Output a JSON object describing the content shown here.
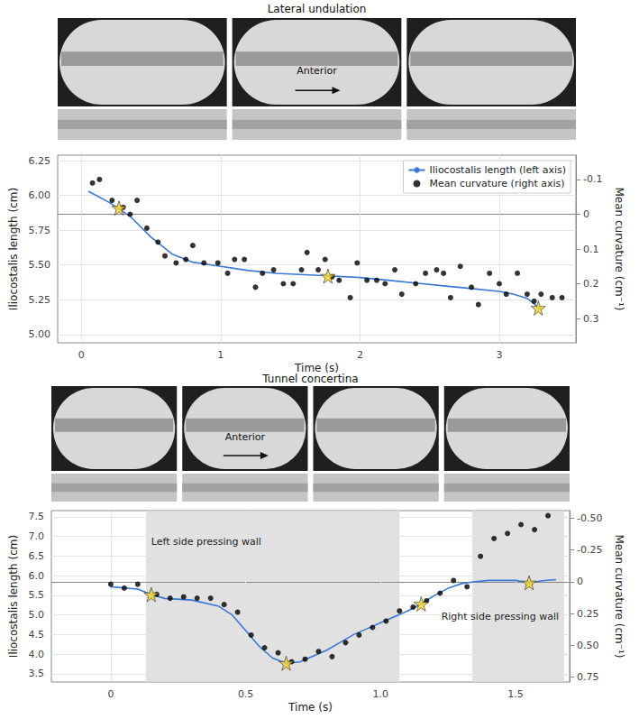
{
  "chart_data": [
    {
      "type": "line",
      "title": "Lateral undulation",
      "xlabel": "Time (s)",
      "ylabel": "Iliocostalis length (cm)",
      "y2label": "Mean curvature (cm⁻¹)",
      "xlim": [
        -0.17,
        3.55
      ],
      "xticks": [
        0,
        1,
        2,
        3
      ],
      "ylim": [
        4.94,
        6.29
      ],
      "yticks": [
        {
          "value": 5,
          "label": "5.00"
        },
        5.25,
        {
          "value": 5.5,
          "label": "5.50"
        },
        5.75,
        {
          "value": 6,
          "label": "6.00"
        },
        6.25
      ],
      "y2lim": [
        0.37,
        -0.17
      ],
      "y2ticks": [
        -0.1,
        0,
        0.1,
        0.2,
        0.3
      ],
      "grid": true,
      "legend": "top-right",
      "series": [
        {
          "name": "Iliocostalis length (left axis)",
          "type": "line",
          "color": "#3a78d4",
          "x": [
            0.05,
            0.2,
            0.35,
            0.5,
            0.65,
            0.8,
            1.0,
            1.2,
            1.4,
            1.6,
            1.8,
            2.0,
            2.2,
            2.4,
            2.6,
            2.8,
            3.0,
            3.1,
            3.2,
            3.3
          ],
          "values": [
            6.03,
            5.95,
            5.85,
            5.7,
            5.58,
            5.52,
            5.49,
            5.46,
            5.44,
            5.43,
            5.42,
            5.41,
            5.39,
            5.37,
            5.35,
            5.33,
            5.31,
            5.29,
            5.26,
            5.18
          ]
        },
        {
          "name": "Mean curvature (right axis)",
          "type": "scatter",
          "marker": "circle",
          "color": "#000000",
          "axis": "y2",
          "x": [
            0.08,
            0.13,
            0.22,
            0.3,
            0.35,
            0.4,
            0.47,
            0.55,
            0.6,
            0.68,
            0.75,
            0.8,
            0.88,
            0.98,
            1.05,
            1.1,
            1.17,
            1.25,
            1.3,
            1.38,
            1.45,
            1.52,
            1.58,
            1.62,
            1.7,
            1.75,
            1.8,
            1.85,
            1.93,
            1.98,
            2.05,
            2.12,
            2.18,
            2.25,
            2.3,
            2.4,
            2.47,
            2.55,
            2.6,
            2.65,
            2.72,
            2.8,
            2.85,
            2.93,
            3.0,
            3.05,
            3.13,
            3.2,
            3.25,
            3.3,
            3.38,
            3.45
          ],
          "values": [
            -0.09,
            -0.1,
            -0.04,
            -0.02,
            0.0,
            -0.04,
            0.04,
            0.08,
            0.12,
            0.14,
            0.13,
            0.09,
            0.14,
            0.14,
            0.17,
            0.13,
            0.13,
            0.21,
            0.17,
            0.16,
            0.2,
            0.2,
            0.16,
            0.11,
            0.16,
            0.13,
            0.18,
            0.19,
            0.24,
            0.14,
            0.19,
            0.19,
            0.2,
            0.16,
            0.23,
            0.2,
            0.17,
            0.16,
            0.17,
            0.24,
            0.15,
            0.21,
            0.26,
            0.17,
            0.2,
            0.23,
            0.17,
            0.23,
            0.25,
            0.23,
            0.24,
            0.24
          ]
        },
        {
          "type": "scatter",
          "marker": "star",
          "color": "#f5d327",
          "x": [
            0.27,
            1.77,
            3.28
          ],
          "values": [
            5.91,
            5.42,
            5.19
          ]
        }
      ],
      "annotations": [
        {
          "text": "Anterior"
        }
      ]
    },
    {
      "type": "line",
      "title": "Tunnel concertina",
      "xlabel": "Time (s)",
      "ylabel": "Iliocostalis length (cm)",
      "y2label": "Mean curvature (cm⁻¹)",
      "xlim": [
        -0.22,
        1.7
      ],
      "xticks": [
        0,
        0.5,
        {
          "value": 1,
          "label": "1.0"
        },
        1.5
      ],
      "ylim": [
        3.29,
        7.66
      ],
      "yticks": [
        3.5,
        {
          "value": 4,
          "label": "4.0"
        },
        4.5,
        {
          "value": 5,
          "label": "5.0"
        },
        5.5,
        {
          "value": 6,
          "label": "6.0"
        },
        6.5,
        {
          "value": 7,
          "label": "7.0"
        },
        7.5
      ],
      "y2lim": [
        0.79,
        -0.56
      ],
      "y2ticks": [
        {
          "value": -0.5,
          "label": "-0.50"
        },
        -0.25,
        0,
        0.25,
        {
          "value": 0.5,
          "label": "0.50"
        },
        0.75
      ],
      "grid": true,
      "series": [
        {
          "type": "line",
          "color": "#3a78d4",
          "x": [
            0,
            0.1,
            0.15,
            0.2,
            0.3,
            0.4,
            0.45,
            0.5,
            0.55,
            0.6,
            0.65,
            0.7,
            0.75,
            0.8,
            0.85,
            0.9,
            0.95,
            1.0,
            1.05,
            1.1,
            1.15,
            1.2,
            1.25,
            1.3,
            1.35,
            1.4,
            1.5,
            1.55,
            1.6,
            1.65
          ],
          "values": [
            5.72,
            5.66,
            5.52,
            5.42,
            5.38,
            5.22,
            5.0,
            4.6,
            4.2,
            3.9,
            3.77,
            3.8,
            3.95,
            4.1,
            4.3,
            4.5,
            4.65,
            4.8,
            4.95,
            5.1,
            5.28,
            5.5,
            5.68,
            5.8,
            5.85,
            5.88,
            5.88,
            5.82,
            5.87,
            5.9
          ]
        },
        {
          "type": "scatter",
          "marker": "circle",
          "color": "#000000",
          "axis": "y2",
          "x": [
            0,
            0.05,
            0.1,
            0.17,
            0.22,
            0.27,
            0.32,
            0.37,
            0.42,
            0.47,
            0.52,
            0.57,
            0.62,
            0.67,
            0.72,
            0.77,
            0.82,
            0.87,
            0.92,
            0.97,
            1.02,
            1.07,
            1.12,
            1.17,
            1.22,
            1.27,
            1.32,
            1.37,
            1.42,
            1.47,
            1.52,
            1.57,
            1.62
          ],
          "values": [
            0.02,
            0.05,
            0.02,
            0.1,
            0.13,
            0.12,
            0.13,
            0.13,
            0.18,
            0.24,
            0.42,
            0.52,
            0.56,
            0.63,
            0.61,
            0.55,
            0.59,
            0.48,
            0.42,
            0.36,
            0.31,
            0.23,
            0.2,
            0.15,
            0.09,
            -0.01,
            0.04,
            -0.2,
            -0.34,
            -0.38,
            -0.45,
            -0.41,
            -0.52
          ]
        },
        {
          "type": "scatter",
          "marker": "star",
          "color": "#f5d327",
          "x": [
            0.15,
            0.65,
            1.15,
            1.55
          ],
          "values": [
            5.52,
            3.77,
            5.28,
            5.82
          ]
        }
      ],
      "annotations": [
        {
          "text": "Anterior"
        },
        {
          "text": "Left side pressing wall",
          "x": [
            0.13,
            1.07
          ]
        },
        {
          "text": "Right side pressing wall",
          "x": [
            1.34,
            1.68
          ]
        }
      ]
    }
  ]
}
